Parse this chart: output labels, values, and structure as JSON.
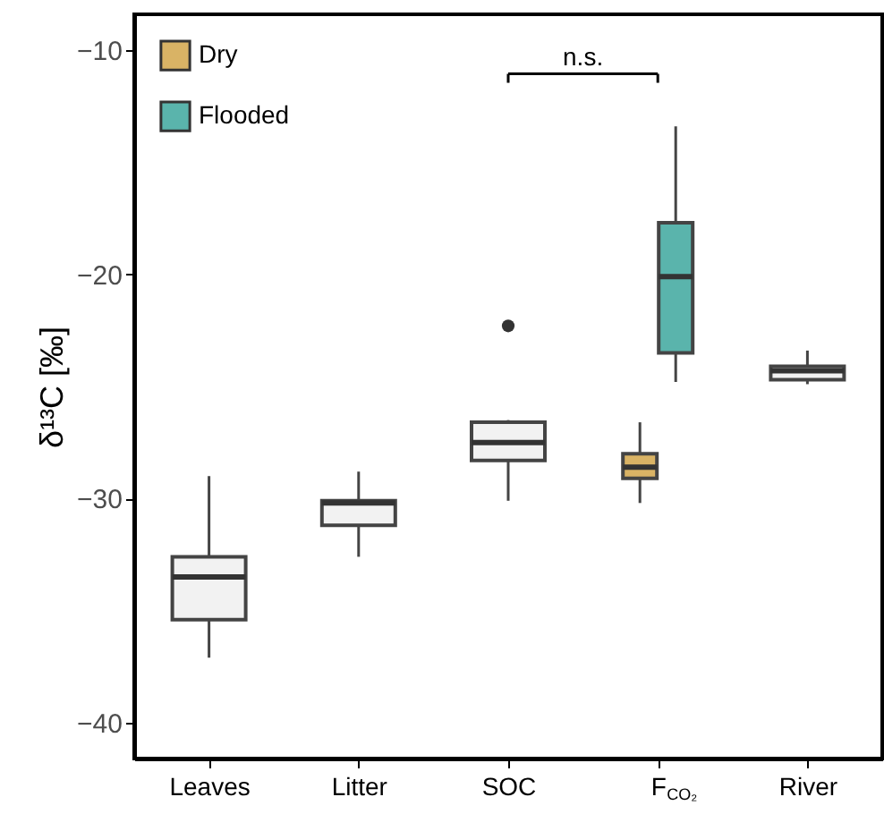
{
  "chart_data": {
    "type": "box",
    "ylabel": "δ¹³C [‰]",
    "categories": [
      "Leaves",
      "Litter",
      "SOC",
      "F$_{CO₂}$",
      "River"
    ],
    "series": [
      {
        "color": "#f2f2f2",
        "boxes": [
          {
            "low": -37.1,
            "q1": -35.4,
            "median": -33.5,
            "q3": -32.6,
            "high": -29.0
          },
          {
            "low": -32.6,
            "q1": -31.2,
            "median": -30.2,
            "q3": -30.1,
            "high": -28.8
          },
          {
            "low": -30.1,
            "q1": -28.3,
            "median": -27.5,
            "q3": -26.6,
            "high": -26.5,
            "outliers": [
              -22.3
            ]
          },
          null,
          {
            "low": -24.9,
            "q1": -24.7,
            "median": -24.3,
            "q3": -24.1,
            "high": -23.4
          }
        ]
      },
      {
        "name": "Dry",
        "color": "#d9b365",
        "boxes": [
          null,
          null,
          null,
          {
            "low": -30.2,
            "q1": -29.1,
            "median": -28.6,
            "q3": -28.0,
            "high": -26.6
          },
          null
        ]
      },
      {
        "name": "Flooded",
        "color": "#5ab4ac",
        "boxes": [
          null,
          null,
          null,
          {
            "low": -24.8,
            "q1": -23.5,
            "median": -20.1,
            "q3": -17.7,
            "high": -13.4
          },
          null
        ]
      }
    ],
    "ylim": [
      -41.6,
      -8.4
    ],
    "yticks": [
      -10,
      -20,
      -30,
      -40
    ],
    "annotations": [
      "n.s."
    ],
    "legend": "top left",
    "grid": false
  }
}
